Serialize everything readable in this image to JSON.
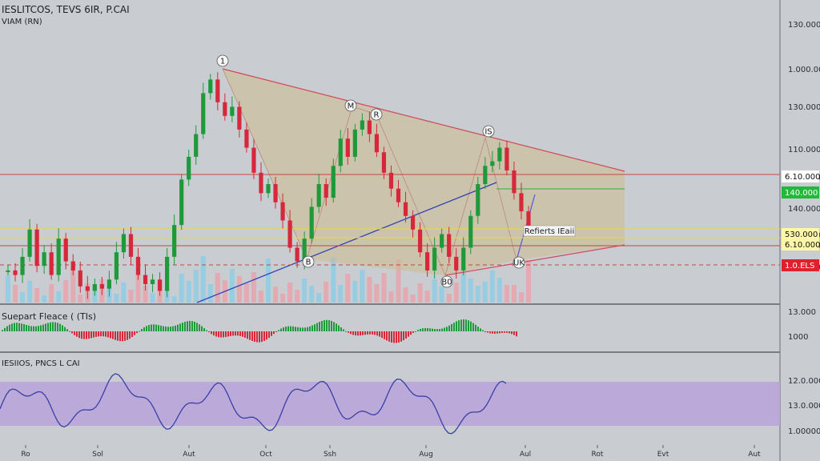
{
  "header": {
    "title": "IESLITCOS, TEVS 6IR, P.CAI",
    "subtitle": "VIAM (RN)"
  },
  "panels": {
    "indicator_title": "Suepart Fleace ( (TIs)",
    "oscillator_title": "IESIIOS, PNCS L CAI"
  },
  "colors": {
    "background": "#c9ccd1",
    "up": "#1f9a3a",
    "down": "#d6283a",
    "triangle_fill": "#cdbb8f",
    "triangle_edge": "#d0485a",
    "trend_line": "#3140b8",
    "yellow_line": "#e5d84a",
    "green_line": "#22b93a",
    "red_line": "#c9463e",
    "osc_band": "#b9a2dc",
    "osc_line": "#3a3fa6",
    "volume": "#8ecde6"
  },
  "chart_data": {
    "type": "line",
    "style": "candlestick",
    "title": "IESLITCOS, TEVS 6IR, P.CAI",
    "price_axis_ticks": [
      "130.000",
      "1.000.00",
      "130.000",
      "110.0000",
      "6.10.000",
      "140.000",
      "1.000.00",
      "530.000",
      "6.10.000",
      "1.0.ELS"
    ],
    "price_levels": {
      "red_resistance": "6.10.000",
      "green_marker": "140.000",
      "yellow_upper": "530.000",
      "yellow_lower": "6.10.000",
      "red_dashed_support": "1.0.ELS"
    },
    "x_tick_labels": [
      "Ro",
      "Sol",
      "Aut",
      "Oct",
      "Ssh",
      "Aug",
      "Aul",
      "Rot",
      "Evt",
      "Aut"
    ],
    "wave_labels": [
      "1",
      "M",
      "R",
      "IS",
      "B",
      "B0",
      "UK"
    ],
    "annotation": "Refierts IEaii",
    "close_series": [
      {
        "t": 0.0,
        "v": 0.12
      },
      {
        "t": 0.01,
        "v": 0.1
      },
      {
        "t": 0.02,
        "v": 0.18
      },
      {
        "t": 0.03,
        "v": 0.3
      },
      {
        "t": 0.04,
        "v": 0.14
      },
      {
        "t": 0.05,
        "v": 0.2
      },
      {
        "t": 0.06,
        "v": 0.1
      },
      {
        "t": 0.07,
        "v": 0.26
      },
      {
        "t": 0.08,
        "v": 0.16
      },
      {
        "t": 0.09,
        "v": 0.12
      },
      {
        "t": 0.1,
        "v": 0.05
      },
      {
        "t": 0.11,
        "v": 0.03
      },
      {
        "t": 0.12,
        "v": 0.06
      },
      {
        "t": 0.13,
        "v": 0.04
      },
      {
        "t": 0.14,
        "v": 0.08
      },
      {
        "t": 0.15,
        "v": 0.2
      },
      {
        "t": 0.16,
        "v": 0.28
      },
      {
        "t": 0.17,
        "v": 0.18
      },
      {
        "t": 0.18,
        "v": 0.1
      },
      {
        "t": 0.19,
        "v": 0.06
      },
      {
        "t": 0.2,
        "v": 0.08
      },
      {
        "t": 0.21,
        "v": 0.03
      },
      {
        "t": 0.22,
        "v": 0.18
      },
      {
        "t": 0.23,
        "v": 0.32
      },
      {
        "t": 0.24,
        "v": 0.52
      },
      {
        "t": 0.25,
        "v": 0.62
      },
      {
        "t": 0.26,
        "v": 0.72
      },
      {
        "t": 0.27,
        "v": 0.9
      },
      {
        "t": 0.28,
        "v": 0.96
      },
      {
        "t": 0.29,
        "v": 0.86
      },
      {
        "t": 0.3,
        "v": 0.8
      },
      {
        "t": 0.31,
        "v": 0.84
      },
      {
        "t": 0.32,
        "v": 0.74
      },
      {
        "t": 0.33,
        "v": 0.66
      },
      {
        "t": 0.34,
        "v": 0.55
      },
      {
        "t": 0.35,
        "v": 0.46
      },
      {
        "t": 0.36,
        "v": 0.5
      },
      {
        "t": 0.37,
        "v": 0.42
      },
      {
        "t": 0.38,
        "v": 0.34
      },
      {
        "t": 0.39,
        "v": 0.22
      },
      {
        "t": 0.4,
        "v": 0.16
      },
      {
        "t": 0.41,
        "v": 0.26
      },
      {
        "t": 0.42,
        "v": 0.4
      },
      {
        "t": 0.43,
        "v": 0.5
      },
      {
        "t": 0.44,
        "v": 0.44
      },
      {
        "t": 0.45,
        "v": 0.58
      },
      {
        "t": 0.46,
        "v": 0.7
      },
      {
        "t": 0.47,
        "v": 0.62
      },
      {
        "t": 0.48,
        "v": 0.74
      },
      {
        "t": 0.49,
        "v": 0.78
      },
      {
        "t": 0.5,
        "v": 0.72
      },
      {
        "t": 0.51,
        "v": 0.64
      },
      {
        "t": 0.52,
        "v": 0.55
      },
      {
        "t": 0.53,
        "v": 0.48
      },
      {
        "t": 0.54,
        "v": 0.42
      },
      {
        "t": 0.55,
        "v": 0.36
      },
      {
        "t": 0.56,
        "v": 0.3
      },
      {
        "t": 0.57,
        "v": 0.2
      },
      {
        "t": 0.58,
        "v": 0.12
      },
      {
        "t": 0.59,
        "v": 0.22
      },
      {
        "t": 0.6,
        "v": 0.28
      },
      {
        "t": 0.61,
        "v": 0.18
      },
      {
        "t": 0.62,
        "v": 0.12
      },
      {
        "t": 0.63,
        "v": 0.22
      },
      {
        "t": 0.64,
        "v": 0.36
      },
      {
        "t": 0.65,
        "v": 0.5
      },
      {
        "t": 0.66,
        "v": 0.58
      },
      {
        "t": 0.67,
        "v": 0.6
      },
      {
        "t": 0.68,
        "v": 0.66
      },
      {
        "t": 0.69,
        "v": 0.56
      },
      {
        "t": 0.7,
        "v": 0.46
      },
      {
        "t": 0.71,
        "v": 0.38
      },
      {
        "t": 0.72,
        "v": 0.3
      }
    ]
  }
}
